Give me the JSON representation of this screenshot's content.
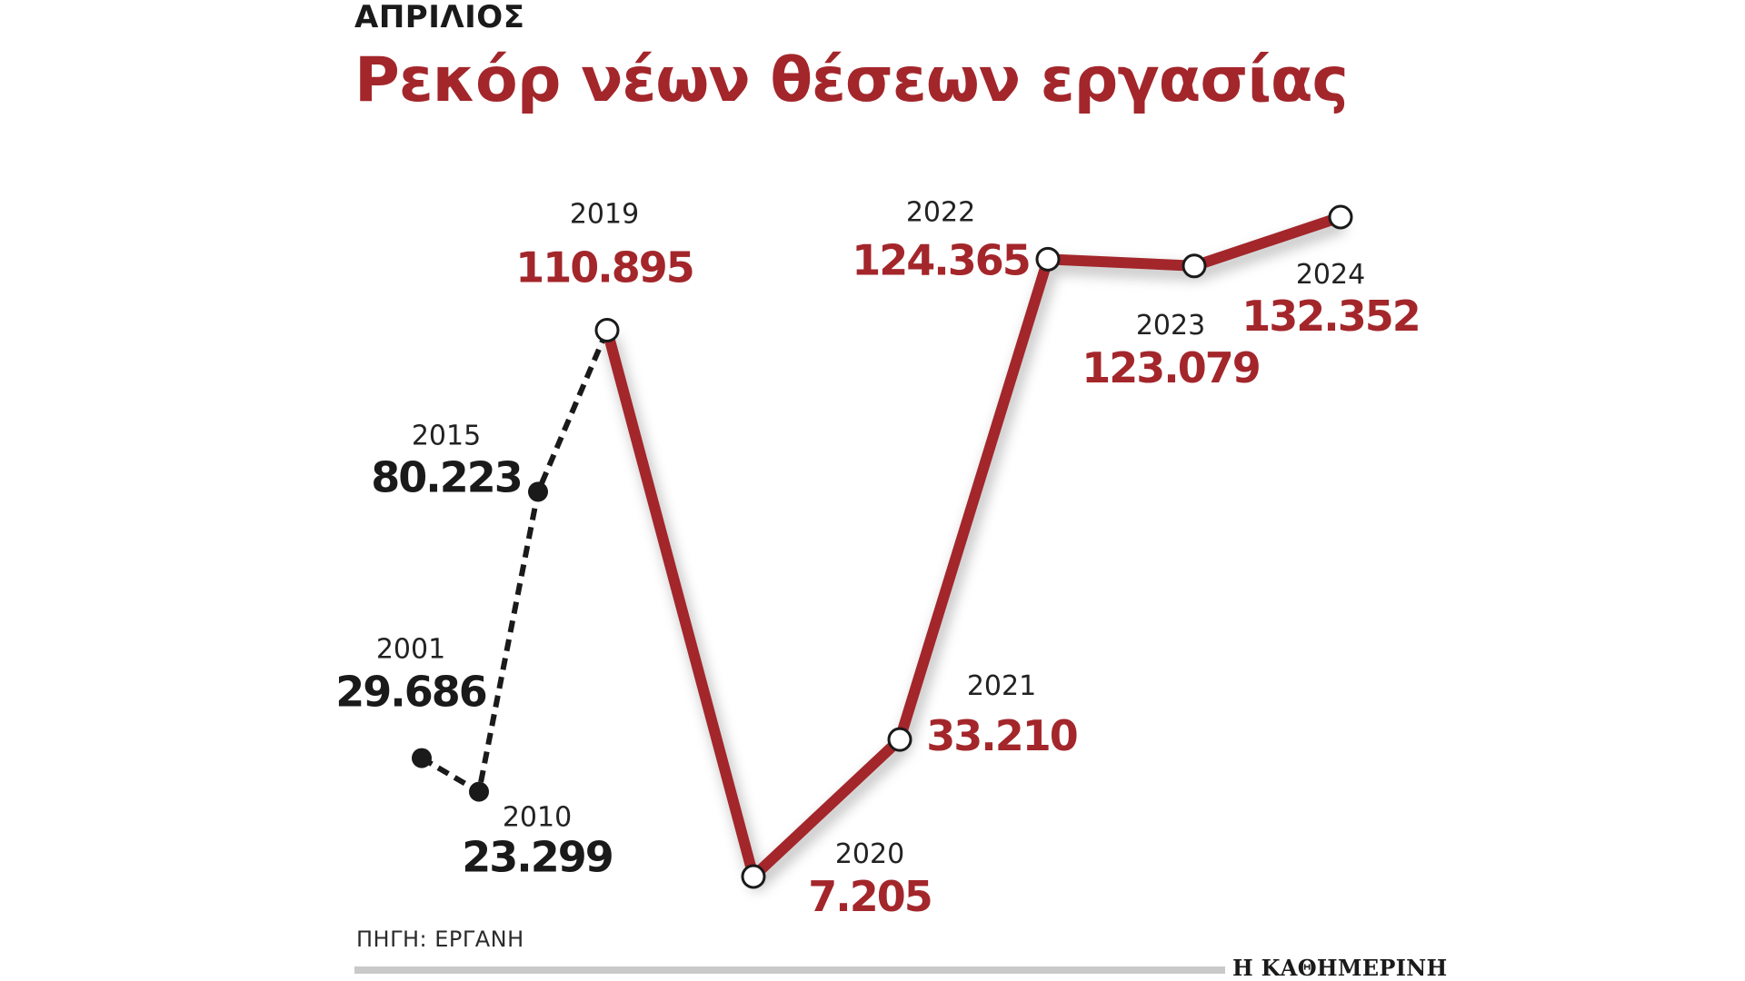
{
  "header": {
    "kicker": "ΑΠΡΙΛΙΟΣ",
    "title": "Ρεκόρ νέων θέσεων εργασίας"
  },
  "footer": {
    "source": "ΠΗΓΗ: ΕΡΓΑΝΗ",
    "brand": "Η ΚΑΘΗΜΕΡΙΝΗ"
  },
  "colors": {
    "accent": "#a3262b",
    "dark": "#1a1a1a",
    "rule": "#c9c9c9"
  },
  "chart_data": {
    "type": "line",
    "title": "Ρεκόρ νέων θέσεων εργασίας",
    "subtitle": "ΑΠΡΙΛΙΟΣ",
    "xlabel": "",
    "ylabel": "",
    "grid": false,
    "legend": "none",
    "points": [
      {
        "year": "2001",
        "value": 29686,
        "label": "29.686",
        "segment": "early"
      },
      {
        "year": "2010",
        "value": 23299,
        "label": "23.299",
        "segment": "early"
      },
      {
        "year": "2015",
        "value": 80223,
        "label": "80.223",
        "segment": "early"
      },
      {
        "year": "2019",
        "value": 110895,
        "label": "110.895",
        "segment": "recent"
      },
      {
        "year": "2020",
        "value": 7205,
        "label": "7.205",
        "segment": "recent"
      },
      {
        "year": "2021",
        "value": 33210,
        "label": "33.210",
        "segment": "recent"
      },
      {
        "year": "2022",
        "value": 124365,
        "label": "124.365",
        "segment": "recent"
      },
      {
        "year": "2023",
        "value": 123079,
        "label": "123.079",
        "segment": "recent"
      },
      {
        "year": "2024",
        "value": 132352,
        "label": "132.352",
        "segment": "recent"
      }
    ]
  }
}
